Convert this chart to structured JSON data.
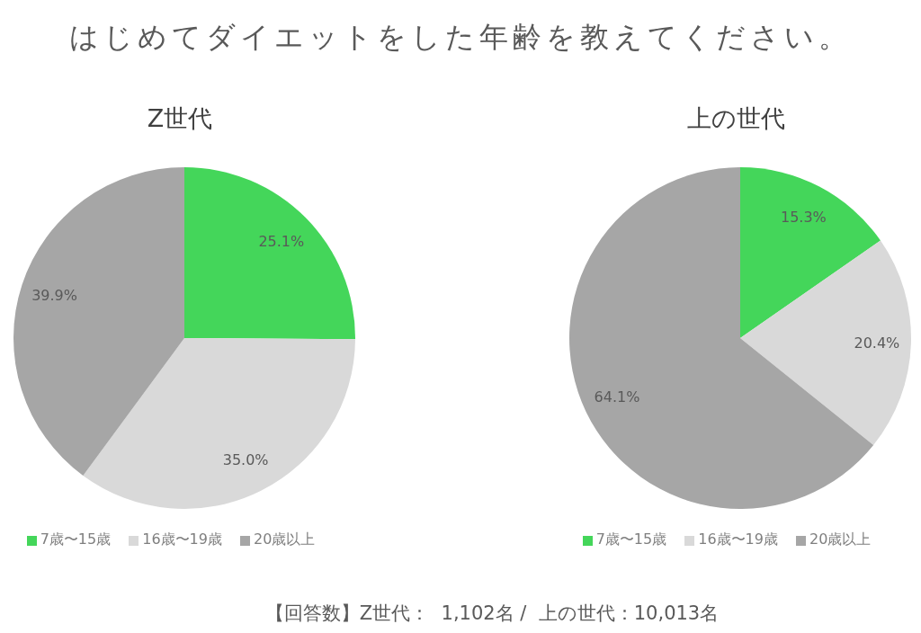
{
  "chart_data": [
    {
      "type": "other",
      "title": "はじめてダイエットをした年齢を教えてください。"
    },
    {
      "type": "pie",
      "title": "Z世代",
      "categories": [
        "7歳〜15歳",
        "16歳〜19歳",
        "20歳以上"
      ],
      "values": [
        25.1,
        35.0,
        39.9
      ],
      "colors": [
        "#44d65a",
        "#d9d9d9",
        "#a6a6a6"
      ],
      "value_labels": [
        "25.1%",
        "35.0%",
        "39.9%"
      ],
      "legend": "bottom"
    },
    {
      "type": "pie",
      "title": "上の世代",
      "categories": [
        "7歳〜15歳",
        "16歳〜19歳",
        "20歳以上"
      ],
      "values": [
        15.3,
        20.4,
        64.1
      ],
      "colors": [
        "#44d65a",
        "#d9d9d9",
        "#a6a6a6"
      ],
      "value_labels": [
        "15.3%",
        "20.4%",
        "64.1%"
      ],
      "legend": "bottom"
    },
    {
      "type": "other",
      "annotations": [
        "【回答数】Z世代：  1,102名 /  上の世代：10,013名"
      ]
    }
  ]
}
